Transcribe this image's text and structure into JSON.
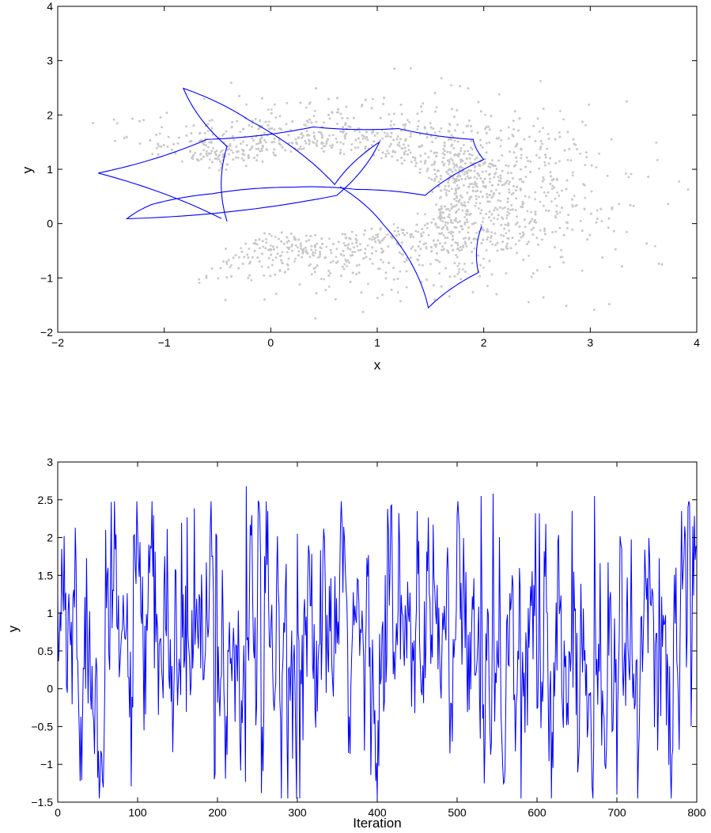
{
  "colors": {
    "scatter": "#c8c8c8",
    "line": "#0000ff",
    "axes": "#000000",
    "background": "#ffffff"
  },
  "chart_data": [
    {
      "type": "scatter",
      "title": "",
      "xlabel": "x",
      "ylabel": "y",
      "xlim": [
        -2,
        4
      ],
      "ylim": [
        -2,
        4
      ],
      "xticks": [
        "−2",
        "−1",
        "0",
        "1",
        "2",
        "3",
        "4"
      ],
      "yticks": [
        "−2",
        "−1",
        "0",
        "1",
        "2",
        "3",
        "4"
      ],
      "grid": false,
      "scatter_cloud": {
        "description_shape": "banana",
        "center": [
          0.45,
          0.55
        ],
        "count": 3200,
        "color": "#c8c8c8"
      },
      "trajectory": [
        [
          -0.41,
          0.04
        ],
        [
          -0.41,
          1.42
        ],
        [
          -0.82,
          2.49
        ],
        [
          -0.2,
          1.9
        ],
        [
          0.6,
          0.72
        ],
        [
          1.02,
          1.5
        ],
        [
          0.62,
          0.52
        ],
        [
          -1.35,
          0.09
        ],
        [
          -1.12,
          0.35
        ],
        [
          -0.55,
          0.55
        ],
        [
          0.2,
          0.67
        ],
        [
          0.8,
          0.63
        ],
        [
          1.45,
          0.52
        ],
        [
          2.0,
          1.18
        ],
        [
          1.9,
          1.55
        ],
        [
          1.2,
          1.75
        ],
        [
          0.4,
          1.78
        ],
        [
          -0.6,
          1.55
        ],
        [
          -1.62,
          0.93
        ],
        [
          -0.41,
          0.04
        ]
      ],
      "trajectory_tail": [
        [
          0.65,
          0.68
        ],
        [
          1.05,
          0.0
        ],
        [
          1.48,
          -1.55
        ],
        [
          1.95,
          -0.9
        ],
        [
          1.99,
          0.0
        ]
      ]
    },
    {
      "type": "line",
      "title": "",
      "xlabel": "Iteration",
      "ylabel": "y",
      "xlim": [
        0,
        800
      ],
      "ylim": [
        -1.5,
        3
      ],
      "xticks": [
        "0",
        "100",
        "200",
        "300",
        "400",
        "500",
        "600",
        "700",
        "800"
      ],
      "yticks": [
        "−1.5",
        "−1",
        "−0.5",
        "0",
        "0.5",
        "1",
        "1.5",
        "2",
        "2.5",
        "3"
      ],
      "grid": false,
      "series": [
        {
          "color": "#0000ff",
          "x_start": 0,
          "x_step": 1,
          "n_points": 800,
          "mean": 0.5,
          "min": -1.45,
          "max": 2.68,
          "peaks": [
            [
              5,
              1.85
            ],
            [
              8,
              2.02
            ],
            [
              22,
              2.13
            ],
            [
              60,
              2.1
            ],
            [
              100,
              2.1
            ],
            [
              198,
              2.05
            ],
            [
              236,
              2.68
            ],
            [
              255,
              -1.38
            ],
            [
              300,
              2.05
            ],
            [
              303,
              -1.45
            ],
            [
              356,
              2.15
            ],
            [
              413,
              2.38
            ],
            [
              450,
              2.35
            ],
            [
              470,
              2.17
            ],
            [
              500,
              2.3
            ],
            [
              530,
              2.55
            ],
            [
              545,
              2.58
            ],
            [
              580,
              -1.45
            ],
            [
              603,
              2.32
            ],
            [
              672,
              2.55
            ],
            [
              700,
              -1.4
            ],
            [
              795,
              2.15
            ]
          ]
        }
      ]
    }
  ]
}
